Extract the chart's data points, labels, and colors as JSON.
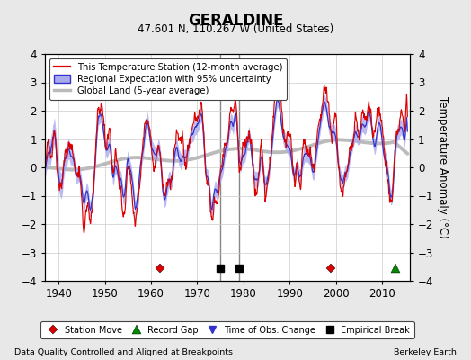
{
  "title": "GERALDINE",
  "subtitle": "47.601 N, 110.267 W (United States)",
  "xlabel_note": "Data Quality Controlled and Aligned at Breakpoints",
  "xlabel_credit": "Berkeley Earth",
  "ylabel": "Temperature Anomaly (°C)",
  "xlim": [
    1937,
    2016
  ],
  "ylim": [
    -4,
    4
  ],
  "yticks": [
    -4,
    -3,
    -2,
    -1,
    0,
    1,
    2,
    3,
    4
  ],
  "xticks": [
    1940,
    1950,
    1960,
    1970,
    1980,
    1990,
    2000,
    2010
  ],
  "bg_color": "#e8e8e8",
  "plot_bg": "#ffffff",
  "station_color": "#dd0000",
  "regional_color": "#3333cc",
  "regional_fill": "#aaaaee",
  "global_color": "#bbbbbb",
  "station_moves": [
    1962,
    1999
  ],
  "record_gaps": [
    2013
  ],
  "time_obs_changes": [],
  "empirical_breaks": [
    1975,
    1979
  ],
  "empirical_break_vline_color": "#888888",
  "seed": 12345
}
